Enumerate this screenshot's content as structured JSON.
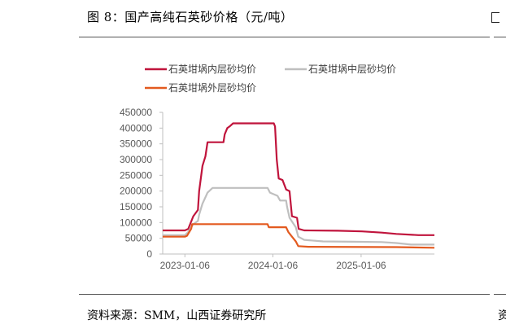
{
  "figure": {
    "title": "图 8：国产高纯石英砂价格（元/吨）",
    "source": "资料来源：SMM，山西证券研究所",
    "next_source_fragment": "资"
  },
  "chart_data": {
    "type": "line",
    "title": "",
    "xlabel": "",
    "ylabel": "",
    "grid": false,
    "legend_position": "top",
    "xlim": [
      "2022-10-06",
      "2025-11-06"
    ],
    "ylim": [
      0,
      450000
    ],
    "x_ticks": [
      "2023-01-06",
      "2024-01-06",
      "2025-01-06"
    ],
    "y_ticks": [
      0,
      50000,
      100000,
      150000,
      200000,
      250000,
      300000,
      350000,
      400000,
      450000
    ],
    "y_tick_labels": [
      "0",
      "50000",
      "100000",
      "150000",
      "200000",
      "250000",
      "300000",
      "350000",
      "400000",
      "450000"
    ],
    "series": [
      {
        "name": "石英坩埚内层砂均价",
        "color": "#c0143c",
        "points": [
          [
            "2022-10-06",
            75000
          ],
          [
            "2023-01-06",
            75000
          ],
          [
            "2023-01-20",
            80000
          ],
          [
            "2023-02-10",
            120000
          ],
          [
            "2023-03-01",
            140000
          ],
          [
            "2023-03-06",
            200000
          ],
          [
            "2023-03-20",
            280000
          ],
          [
            "2023-04-01",
            310000
          ],
          [
            "2023-04-10",
            355000
          ],
          [
            "2023-05-15",
            355000
          ],
          [
            "2023-06-15",
            355000
          ],
          [
            "2023-06-20",
            380000
          ],
          [
            "2023-07-01",
            400000
          ],
          [
            "2023-07-10",
            405000
          ],
          [
            "2023-07-25",
            415000
          ],
          [
            "2024-01-10",
            415000
          ],
          [
            "2024-01-15",
            405000
          ],
          [
            "2024-01-22",
            300000
          ],
          [
            "2024-01-30",
            240000
          ],
          [
            "2024-02-15",
            235000
          ],
          [
            "2024-03-01",
            205000
          ],
          [
            "2024-03-15",
            200000
          ],
          [
            "2024-03-25",
            120000
          ],
          [
            "2024-04-15",
            115000
          ],
          [
            "2024-04-22",
            80000
          ],
          [
            "2024-05-15",
            75000
          ],
          [
            "2024-10-01",
            74000
          ],
          [
            "2025-01-10",
            72000
          ],
          [
            "2025-04-01",
            68000
          ],
          [
            "2025-06-01",
            64000
          ],
          [
            "2025-09-01",
            60000
          ],
          [
            "2025-11-06",
            60000
          ]
        ]
      },
      {
        "name": "石英坩埚中层砂均价",
        "color": "#bfbfbf",
        "points": [
          [
            "2022-10-06",
            60000
          ],
          [
            "2023-01-06",
            60000
          ],
          [
            "2023-01-20",
            70000
          ],
          [
            "2023-02-10",
            95000
          ],
          [
            "2023-03-01",
            105000
          ],
          [
            "2023-03-06",
            125000
          ],
          [
            "2023-03-20",
            160000
          ],
          [
            "2023-04-01",
            180000
          ],
          [
            "2023-04-10",
            195000
          ],
          [
            "2023-05-01",
            210000
          ],
          [
            "2023-12-15",
            210000
          ],
          [
            "2023-12-25",
            195000
          ],
          [
            "2024-01-25",
            185000
          ],
          [
            "2024-02-05",
            170000
          ],
          [
            "2024-03-01",
            170000
          ],
          [
            "2024-03-05",
            150000
          ],
          [
            "2024-03-15",
            115000
          ],
          [
            "2024-04-10",
            85000
          ],
          [
            "2024-04-20",
            55000
          ],
          [
            "2024-05-15",
            45000
          ],
          [
            "2024-08-01",
            40000
          ],
          [
            "2024-12-01",
            39000
          ],
          [
            "2025-04-01",
            38000
          ],
          [
            "2025-06-01",
            35000
          ],
          [
            "2025-08-01",
            30000
          ],
          [
            "2025-11-06",
            30000
          ]
        ]
      },
      {
        "name": "石英坩埚外层砂均价",
        "color": "#e35a1f",
        "points": [
          [
            "2022-10-06",
            55000
          ],
          [
            "2023-01-06",
            55000
          ],
          [
            "2023-01-15",
            58000
          ],
          [
            "2023-02-01",
            80000
          ],
          [
            "2023-02-05",
            95000
          ],
          [
            "2023-12-15",
            95000
          ],
          [
            "2023-12-20",
            85000
          ],
          [
            "2024-03-01",
            85000
          ],
          [
            "2024-03-10",
            70000
          ],
          [
            "2024-03-25",
            55000
          ],
          [
            "2024-04-10",
            40000
          ],
          [
            "2024-04-20",
            25000
          ],
          [
            "2024-06-01",
            23000
          ],
          [
            "2025-06-01",
            22000
          ],
          [
            "2025-11-06",
            20000
          ]
        ]
      }
    ]
  }
}
